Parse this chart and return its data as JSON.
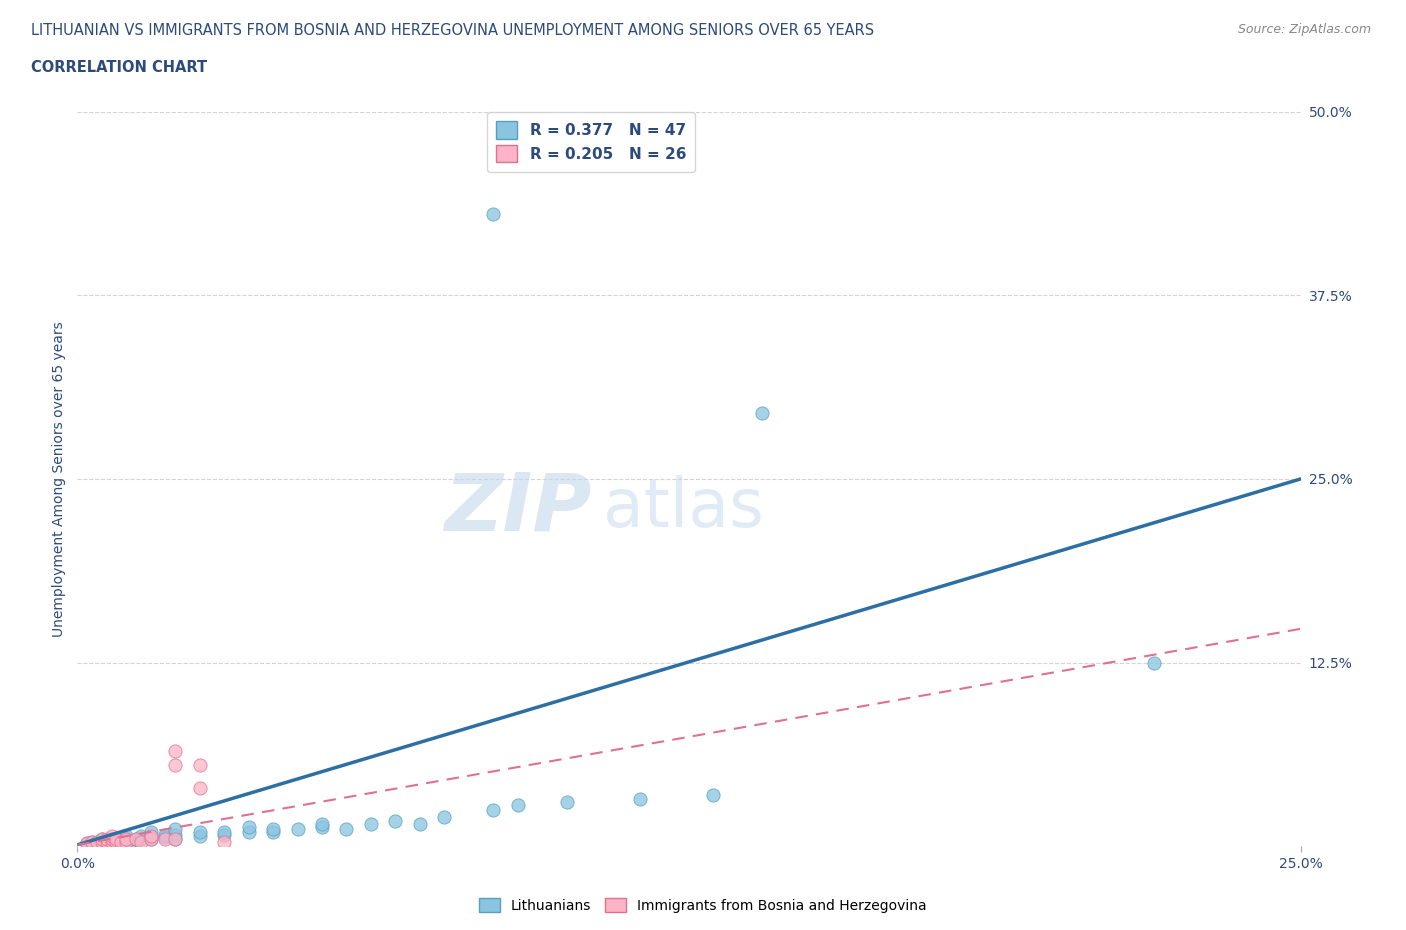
{
  "title_line1": "LITHUANIAN VS IMMIGRANTS FROM BOSNIA AND HERZEGOVINA UNEMPLOYMENT AMONG SENIORS OVER 65 YEARS",
  "title_line2": "CORRELATION CHART",
  "source_text": "Source: ZipAtlas.com",
  "ylabel": "Unemployment Among Seniors over 65 years",
  "xlim": [
    0.0,
    0.25
  ],
  "ylim": [
    0.0,
    0.5
  ],
  "xtick_positions": [
    0.0,
    0.25
  ],
  "xtick_labels": [
    "0.0%",
    "25.0%"
  ],
  "ytick_vals_right": [
    0.5,
    0.375,
    0.25,
    0.125
  ],
  "ytick_labels_right": [
    "50.0%",
    "37.5%",
    "25.0%",
    "12.5%"
  ],
  "color_blue": "#89c4e1",
  "color_pink": "#ffb3c6",
  "color_blue_edge": "#5a9fc0",
  "color_pink_edge": "#e07090",
  "color_blue_line": "#2e6fa3",
  "color_pink_line": "#e07090",
  "watermark_zip_color": "#c5d8ee",
  "watermark_atlas_color": "#c5d8ee",
  "blue_scatter": [
    [
      0.002,
      0.002
    ],
    [
      0.003,
      0.003
    ],
    [
      0.005,
      0.003
    ],
    [
      0.005,
      0.005
    ],
    [
      0.007,
      0.003
    ],
    [
      0.007,
      0.005
    ],
    [
      0.008,
      0.003
    ],
    [
      0.008,
      0.005
    ],
    [
      0.009,
      0.003
    ],
    [
      0.01,
      0.003
    ],
    [
      0.01,
      0.005
    ],
    [
      0.01,
      0.007
    ],
    [
      0.012,
      0.003
    ],
    [
      0.012,
      0.005
    ],
    [
      0.013,
      0.005
    ],
    [
      0.013,
      0.007
    ],
    [
      0.015,
      0.005
    ],
    [
      0.015,
      0.007
    ],
    [
      0.015,
      0.01
    ],
    [
      0.018,
      0.006
    ],
    [
      0.018,
      0.008
    ],
    [
      0.02,
      0.005
    ],
    [
      0.02,
      0.008
    ],
    [
      0.02,
      0.012
    ],
    [
      0.025,
      0.007
    ],
    [
      0.025,
      0.01
    ],
    [
      0.03,
      0.008
    ],
    [
      0.03,
      0.01
    ],
    [
      0.035,
      0.01
    ],
    [
      0.035,
      0.013
    ],
    [
      0.04,
      0.01
    ],
    [
      0.04,
      0.012
    ],
    [
      0.045,
      0.012
    ],
    [
      0.05,
      0.013
    ],
    [
      0.05,
      0.015
    ],
    [
      0.055,
      0.012
    ],
    [
      0.06,
      0.015
    ],
    [
      0.065,
      0.017
    ],
    [
      0.07,
      0.015
    ],
    [
      0.075,
      0.02
    ],
    [
      0.085,
      0.025
    ],
    [
      0.09,
      0.028
    ],
    [
      0.1,
      0.03
    ],
    [
      0.115,
      0.032
    ],
    [
      0.13,
      0.035
    ],
    [
      0.22,
      0.125
    ],
    [
      0.085,
      0.43
    ],
    [
      0.14,
      0.295
    ]
  ],
  "pink_scatter": [
    [
      0.002,
      0.002
    ],
    [
      0.003,
      0.003
    ],
    [
      0.004,
      0.003
    ],
    [
      0.005,
      0.003
    ],
    [
      0.005,
      0.005
    ],
    [
      0.006,
      0.003
    ],
    [
      0.006,
      0.005
    ],
    [
      0.007,
      0.003
    ],
    [
      0.007,
      0.005
    ],
    [
      0.007,
      0.007
    ],
    [
      0.008,
      0.003
    ],
    [
      0.008,
      0.005
    ],
    [
      0.009,
      0.003
    ],
    [
      0.01,
      0.003
    ],
    [
      0.01,
      0.005
    ],
    [
      0.012,
      0.005
    ],
    [
      0.013,
      0.003
    ],
    [
      0.015,
      0.005
    ],
    [
      0.015,
      0.007
    ],
    [
      0.018,
      0.005
    ],
    [
      0.02,
      0.005
    ],
    [
      0.02,
      0.055
    ],
    [
      0.02,
      0.065
    ],
    [
      0.025,
      0.055
    ],
    [
      0.025,
      0.04
    ],
    [
      0.03,
      0.003
    ]
  ],
  "blue_trend_x": [
    0.0,
    0.25
  ],
  "blue_trend_y": [
    0.001,
    0.25
  ],
  "pink_trend_x": [
    0.0,
    0.25
  ],
  "pink_trend_y": [
    0.001,
    0.148
  ],
  "grid_color": "#d0d0d0",
  "bg_color": "#ffffff"
}
